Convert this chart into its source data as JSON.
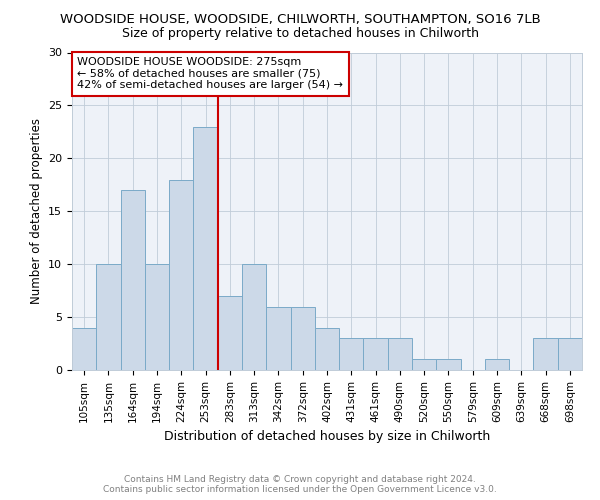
{
  "title": "WOODSIDE HOUSE, WOODSIDE, CHILWORTH, SOUTHAMPTON, SO16 7LB",
  "subtitle": "Size of property relative to detached houses in Chilworth",
  "xlabel": "Distribution of detached houses by size in Chilworth",
  "ylabel": "Number of detached properties",
  "categories": [
    "105sqm",
    "135sqm",
    "164sqm",
    "194sqm",
    "224sqm",
    "253sqm",
    "283sqm",
    "313sqm",
    "342sqm",
    "372sqm",
    "402sqm",
    "431sqm",
    "461sqm",
    "490sqm",
    "520sqm",
    "550sqm",
    "579sqm",
    "609sqm",
    "639sqm",
    "668sqm",
    "698sqm"
  ],
  "values": [
    4,
    10,
    17,
    10,
    18,
    23,
    7,
    10,
    6,
    6,
    4,
    3,
    3,
    3,
    1,
    1,
    0,
    1,
    0,
    3,
    3
  ],
  "bar_color": "#ccd9e8",
  "bar_edge_color": "#7aaac8",
  "vline_color": "#cc0000",
  "vline_x_index": 6,
  "annotation_title": "WOODSIDE HOUSE WOODSIDE: 275sqm",
  "annotation_line1": "← 58% of detached houses are smaller (75)",
  "annotation_line2": "42% of semi-detached houses are larger (54) →",
  "annotation_box_color": "#ffffff",
  "annotation_box_edge": "#cc0000",
  "ylim": [
    0,
    30
  ],
  "yticks": [
    0,
    5,
    10,
    15,
    20,
    25,
    30
  ],
  "footer_line1": "Contains HM Land Registry data © Crown copyright and database right 2024.",
  "footer_line2": "Contains public sector information licensed under the Open Government Licence v3.0.",
  "bg_color": "#eef2f8",
  "grid_color": "#c0ccd8",
  "title_fontsize": 9.5,
  "subtitle_fontsize": 9.0,
  "ylabel_fontsize": 8.5,
  "xlabel_fontsize": 9.0,
  "tick_fontsize": 7.5,
  "annotation_fontsize": 8.0,
  "footer_fontsize": 6.5
}
